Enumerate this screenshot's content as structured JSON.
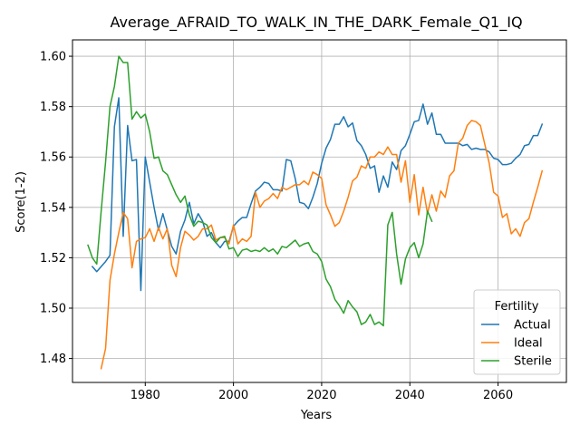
{
  "chart_data": {
    "type": "line",
    "title": "Average_AFRAID_TO_WALK_IN_THE_DARK_Female_Q1_IQ",
    "xlabel": "Years",
    "ylabel": "Score(1-2)",
    "xlim": [
      1963.5,
      2075.5
    ],
    "ylim": [
      1.4705,
      1.6065
    ],
    "xticks": [
      1980,
      2000,
      2020,
      2040,
      2060
    ],
    "yticks": [
      1.48,
      1.5,
      1.52,
      1.54,
      1.56,
      1.58,
      1.6
    ],
    "ytick_labels": [
      "1.48",
      "1.50",
      "1.52",
      "1.54",
      "1.56",
      "1.58",
      "1.60"
    ],
    "grid": true,
    "legend": {
      "title": "Fertility",
      "position": "lower-right"
    },
    "series": [
      {
        "name": "Actual",
        "color": "#1f77b4",
        "points": [
          [
            1968,
            1.5165
          ],
          [
            1969,
            1.5145
          ],
          [
            1970,
            1.5165
          ],
          [
            1971,
            1.5185
          ],
          [
            1972,
            1.521
          ],
          [
            1973,
            1.572
          ],
          [
            1974,
            1.5835
          ],
          [
            1975,
            1.5285
          ],
          [
            1976,
            1.5725
          ],
          [
            1977,
            1.5585
          ],
          [
            1978,
            1.559
          ],
          [
            1979,
            1.507
          ],
          [
            1980,
            1.56
          ],
          [
            1981,
            1.55
          ],
          [
            1982,
            1.54
          ],
          [
            1983,
            1.531
          ],
          [
            1984,
            1.5375
          ],
          [
            1985,
            1.531
          ],
          [
            1986,
            1.5245
          ],
          [
            1987,
            1.5215
          ],
          [
            1988,
            1.5305
          ],
          [
            1989,
            1.535
          ],
          [
            1990,
            1.542
          ],
          [
            1991,
            1.5335
          ],
          [
            1992,
            1.5375
          ],
          [
            1993,
            1.5345
          ],
          [
            1994,
            1.5285
          ],
          [
            1995,
            1.53
          ],
          [
            1996,
            1.526
          ],
          [
            1997,
            1.524
          ],
          [
            1998,
            1.5265
          ],
          [
            1999,
            1.5265
          ],
          [
            2000,
            1.5325
          ],
          [
            2001,
            1.5345
          ],
          [
            2002,
            1.536
          ],
          [
            2003,
            1.536
          ],
          [
            2004,
            1.5415
          ],
          [
            2005,
            1.5465
          ],
          [
            2006,
            1.548
          ],
          [
            2007,
            1.55
          ],
          [
            2008,
            1.5495
          ],
          [
            2009,
            1.547
          ],
          [
            2010,
            1.547
          ],
          [
            2011,
            1.5465
          ],
          [
            2012,
            1.559
          ],
          [
            2013,
            1.5585
          ],
          [
            2014,
            1.5515
          ],
          [
            2015,
            1.542
          ],
          [
            2016,
            1.5415
          ],
          [
            2017,
            1.5395
          ],
          [
            2018,
            1.544
          ],
          [
            2019,
            1.5495
          ],
          [
            2020,
            1.5575
          ],
          [
            2021,
            1.5635
          ],
          [
            2022,
            1.567
          ],
          [
            2023,
            1.573
          ],
          [
            2024,
            1.573
          ],
          [
            2025,
            1.576
          ],
          [
            2026,
            1.572
          ],
          [
            2027,
            1.5735
          ],
          [
            2028,
            1.5665
          ],
          [
            2029,
            1.5645
          ],
          [
            2030,
            1.561
          ],
          [
            2031,
            1.5555
          ],
          [
            2032,
            1.5565
          ],
          [
            2033,
            1.546
          ],
          [
            2034,
            1.5525
          ],
          [
            2035,
            1.548
          ],
          [
            2036,
            1.558
          ],
          [
            2037,
            1.555
          ],
          [
            2038,
            1.5625
          ],
          [
            2039,
            1.5645
          ],
          [
            2040,
            1.569
          ],
          [
            2041,
            1.574
          ],
          [
            2042,
            1.5745
          ],
          [
            2043,
            1.581
          ],
          [
            2044,
            1.573
          ],
          [
            2045,
            1.5775
          ],
          [
            2046,
            1.569
          ],
          [
            2047,
            1.569
          ],
          [
            2048,
            1.5655
          ],
          [
            2049,
            1.5655
          ],
          [
            2050,
            1.5655
          ],
          [
            2051,
            1.5655
          ],
          [
            2052,
            1.5645
          ],
          [
            2053,
            1.565
          ],
          [
            2054,
            1.563
          ],
          [
            2055,
            1.5635
          ],
          [
            2056,
            1.563
          ],
          [
            2057,
            1.563
          ],
          [
            2058,
            1.562
          ],
          [
            2059,
            1.5595
          ],
          [
            2060,
            1.559
          ],
          [
            2061,
            1.557
          ],
          [
            2062,
            1.557
          ],
          [
            2063,
            1.5575
          ],
          [
            2064,
            1.5595
          ],
          [
            2065,
            1.561
          ],
          [
            2066,
            1.5645
          ],
          [
            2067,
            1.565
          ],
          [
            2068,
            1.5685
          ],
          [
            2069,
            1.5685
          ],
          [
            2070,
            1.573
          ]
        ]
      },
      {
        "name": "Ideal",
        "color": "#ff7f0e",
        "points": [
          [
            1970,
            1.476
          ],
          [
            1971,
            1.484
          ],
          [
            1972,
            1.511
          ],
          [
            1973,
            1.5215
          ],
          [
            1974,
            1.53
          ],
          [
            1975,
            1.538
          ],
          [
            1976,
            1.5355
          ],
          [
            1977,
            1.516
          ],
          [
            1978,
            1.5265
          ],
          [
            1979,
            1.5275
          ],
          [
            1980,
            1.528
          ],
          [
            1981,
            1.5315
          ],
          [
            1982,
            1.5265
          ],
          [
            1983,
            1.532
          ],
          [
            1984,
            1.5275
          ],
          [
            1985,
            1.5315
          ],
          [
            1986,
            1.517
          ],
          [
            1987,
            1.5125
          ],
          [
            1988,
            1.524
          ],
          [
            1989,
            1.5305
          ],
          [
            1990,
            1.529
          ],
          [
            1991,
            1.527
          ],
          [
            1992,
            1.5285
          ],
          [
            1993,
            1.5315
          ],
          [
            1994,
            1.5315
          ],
          [
            1995,
            1.533
          ],
          [
            1996,
            1.527
          ],
          [
            1997,
            1.528
          ],
          [
            1998,
            1.528
          ],
          [
            1999,
            1.5255
          ],
          [
            2000,
            1.533
          ],
          [
            2001,
            1.5255
          ],
          [
            2002,
            1.5275
          ],
          [
            2003,
            1.5265
          ],
          [
            2004,
            1.5285
          ],
          [
            2005,
            1.546
          ],
          [
            2006,
            1.54
          ],
          [
            2007,
            1.5425
          ],
          [
            2008,
            1.5435
          ],
          [
            2009,
            1.5455
          ],
          [
            2010,
            1.5435
          ],
          [
            2011,
            1.548
          ],
          [
            2012,
            1.547
          ],
          [
            2013,
            1.548
          ],
          [
            2014,
            1.549
          ],
          [
            2015,
            1.549
          ],
          [
            2016,
            1.5505
          ],
          [
            2017,
            1.549
          ],
          [
            2018,
            1.554
          ],
          [
            2019,
            1.553
          ],
          [
            2020,
            1.5515
          ],
          [
            2021,
            1.541
          ],
          [
            2022,
            1.537
          ],
          [
            2023,
            1.5325
          ],
          [
            2024,
            1.534
          ],
          [
            2025,
            1.5385
          ],
          [
            2026,
            1.544
          ],
          [
            2027,
            1.5505
          ],
          [
            2028,
            1.552
          ],
          [
            2029,
            1.5565
          ],
          [
            2030,
            1.5555
          ],
          [
            2031,
            1.56
          ],
          [
            2032,
            1.56
          ],
          [
            2033,
            1.562
          ],
          [
            2034,
            1.561
          ],
          [
            2035,
            1.564
          ],
          [
            2036,
            1.561
          ],
          [
            2037,
            1.561
          ],
          [
            2038,
            1.55
          ],
          [
            2039,
            1.5585
          ],
          [
            2040,
            1.542
          ],
          [
            2041,
            1.553
          ],
          [
            2042,
            1.537
          ],
          [
            2043,
            1.548
          ],
          [
            2044,
            1.5375
          ],
          [
            2045,
            1.545
          ],
          [
            2046,
            1.5385
          ],
          [
            2047,
            1.5465
          ],
          [
            2048,
            1.544
          ],
          [
            2049,
            1.5525
          ],
          [
            2050,
            1.5545
          ],
          [
            2051,
            1.5655
          ],
          [
            2052,
            1.5675
          ],
          [
            2053,
            1.5725
          ],
          [
            2054,
            1.5745
          ],
          [
            2055,
            1.574
          ],
          [
            2056,
            1.5725
          ],
          [
            2057,
            1.565
          ],
          [
            2058,
            1.5575
          ],
          [
            2059,
            1.546
          ],
          [
            2060,
            1.5445
          ],
          [
            2061,
            1.536
          ],
          [
            2062,
            1.5375
          ],
          [
            2063,
            1.5295
          ],
          [
            2064,
            1.5315
          ],
          [
            2065,
            1.5285
          ],
          [
            2066,
            1.534
          ],
          [
            2067,
            1.5355
          ],
          [
            2068,
            1.542
          ],
          [
            2069,
            1.548
          ],
          [
            2070,
            1.5545
          ]
        ]
      },
      {
        "name": "Sterile",
        "color": "#2ca02c",
        "points": [
          [
            1967,
            1.525
          ],
          [
            1968,
            1.52
          ],
          [
            1969,
            1.5175
          ],
          [
            1970,
            1.5385
          ],
          [
            1971,
            1.558
          ],
          [
            1972,
            1.58
          ],
          [
            1973,
            1.588
          ],
          [
            1974,
            1.6
          ],
          [
            1975,
            1.5975
          ],
          [
            1976,
            1.5975
          ],
          [
            1977,
            1.575
          ],
          [
            1978,
            1.578
          ],
          [
            1979,
            1.5755
          ],
          [
            1980,
            1.577
          ],
          [
            1981,
            1.57
          ],
          [
            1982,
            1.5595
          ],
          [
            1983,
            1.56
          ],
          [
            1984,
            1.5545
          ],
          [
            1985,
            1.553
          ],
          [
            1986,
            1.549
          ],
          [
            1987,
            1.545
          ],
          [
            1988,
            1.542
          ],
          [
            1989,
            1.5445
          ],
          [
            1990,
            1.537
          ],
          [
            1991,
            1.5325
          ],
          [
            1992,
            1.5345
          ],
          [
            1993,
            1.534
          ],
          [
            1994,
            1.533
          ],
          [
            1995,
            1.528
          ],
          [
            1996,
            1.526
          ],
          [
            1997,
            1.528
          ],
          [
            1998,
            1.5285
          ],
          [
            1999,
            1.5235
          ],
          [
            2000,
            1.524
          ],
          [
            2001,
            1.5205
          ],
          [
            2002,
            1.523
          ],
          [
            2003,
            1.5235
          ],
          [
            2004,
            1.5225
          ],
          [
            2005,
            1.523
          ],
          [
            2006,
            1.5225
          ],
          [
            2007,
            1.524
          ],
          [
            2008,
            1.5225
          ],
          [
            2009,
            1.5235
          ],
          [
            2010,
            1.5215
          ],
          [
            2011,
            1.5245
          ],
          [
            2012,
            1.524
          ],
          [
            2013,
            1.5255
          ],
          [
            2014,
            1.527
          ],
          [
            2015,
            1.5245
          ],
          [
            2016,
            1.5255
          ],
          [
            2017,
            1.526
          ],
          [
            2018,
            1.5225
          ],
          [
            2019,
            1.5215
          ],
          [
            2020,
            1.5185
          ],
          [
            2021,
            1.5115
          ],
          [
            2022,
            1.5085
          ],
          [
            2023,
            1.5035
          ],
          [
            2024,
            1.501
          ],
          [
            2025,
            1.498
          ],
          [
            2026,
            1.503
          ],
          [
            2027,
            1.5005
          ],
          [
            2028,
            1.4985
          ],
          [
            2029,
            1.4935
          ],
          [
            2030,
            1.4945
          ],
          [
            2031,
            1.4975
          ],
          [
            2032,
            1.4935
          ],
          [
            2033,
            1.4945
          ],
          [
            2034,
            1.493
          ],
          [
            2035,
            1.533
          ],
          [
            2036,
            1.538
          ],
          [
            2037,
            1.5215
          ],
          [
            2038,
            1.5095
          ],
          [
            2039,
            1.5195
          ],
          [
            2040,
            1.524
          ],
          [
            2041,
            1.526
          ],
          [
            2042,
            1.52
          ],
          [
            2043,
            1.5255
          ],
          [
            2044,
            1.5385
          ],
          [
            2045,
            1.5345
          ]
        ]
      }
    ]
  }
}
